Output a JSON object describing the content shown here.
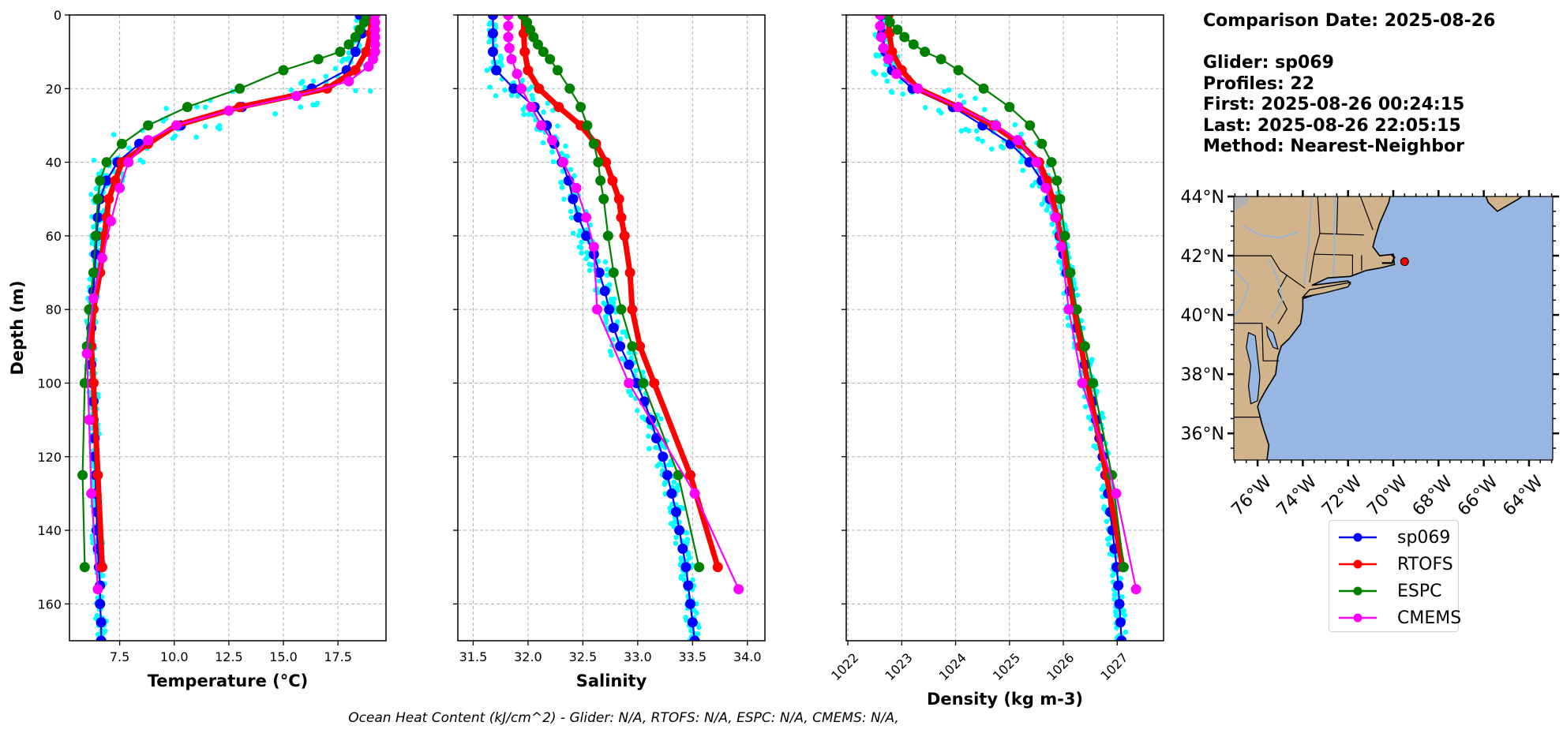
{
  "info": {
    "comparison_date": "Comparison Date: 2025-08-26",
    "glider": "Glider: sp069",
    "profiles": "Profiles: 22",
    "first": "First: 2025-08-26 00:24:15",
    "last": "Last: 2025-08-26 22:05:15",
    "method": "Method: Nearest-Neighbor"
  },
  "footer": "Ocean Heat Content (kJ/cm^2) - Glider: N/A,  RTOFS: N/A,  ESPC: N/A,  CMEMS: N/A,",
  "colors": {
    "glider": "#0000ff",
    "glider_scatter": "#00ffff",
    "rtofs": "#ff0000",
    "espc": "#008000",
    "cmems": "#ff00ff",
    "land": "#d2b48c",
    "ocean": "#97b6e1",
    "grid": "#b0b0b0"
  },
  "legend": [
    {
      "label": "sp069",
      "color": "#0000ff"
    },
    {
      "label": "RTOFS",
      "color": "#ff0000"
    },
    {
      "label": "ESPC",
      "color": "#008000"
    },
    {
      "label": "CMEMS",
      "color": "#ff00ff"
    }
  ],
  "chart_data": [
    {
      "type": "line",
      "title": "",
      "xlabel": "Temperature (°C)",
      "ylabel": "Depth (m)",
      "xlim": [
        5.2,
        19.7
      ],
      "ylim": [
        170,
        0
      ],
      "xticks": [
        7.5,
        10.0,
        12.5,
        15.0,
        17.5
      ],
      "xtick_labels": [
        "7.5",
        "10.0",
        "12.5",
        "15.0",
        "17.5"
      ],
      "yticks": [
        0,
        20,
        40,
        60,
        80,
        100,
        120,
        140,
        160
      ],
      "ytick_labels": [
        "0",
        "20",
        "40",
        "60",
        "80",
        "100",
        "120",
        "140",
        "160"
      ],
      "grid": true,
      "series": [
        {
          "name": "sp069",
          "depth": [
            0,
            5,
            10,
            15,
            20,
            25,
            30,
            35,
            40,
            45,
            50,
            55,
            60,
            65,
            70,
            75,
            80,
            85,
            90,
            95,
            100,
            105,
            110,
            115,
            120,
            125,
            130,
            135,
            140,
            145,
            150,
            155,
            160,
            165,
            170
          ],
          "values": [
            18.5,
            18.6,
            18.3,
            17.9,
            16.3,
            13.1,
            10.3,
            8.4,
            7.4,
            6.9,
            6.6,
            6.5,
            6.45,
            6.4,
            6.35,
            6.3,
            6.25,
            6.2,
            6.2,
            6.2,
            6.25,
            6.3,
            6.3,
            6.35,
            6.35,
            6.4,
            6.4,
            6.45,
            6.45,
            6.5,
            6.55,
            6.6,
            6.6,
            6.65,
            6.65
          ]
        },
        {
          "name": "RTOFS",
          "depth": [
            0,
            5,
            10,
            15,
            20,
            25,
            30,
            35,
            40,
            45,
            50,
            55,
            60,
            70,
            80,
            90,
            100,
            125,
            150
          ],
          "values": [
            19.0,
            19.0,
            18.8,
            18.3,
            17.0,
            13.0,
            10.1,
            8.8,
            7.6,
            7.3,
            7.0,
            6.9,
            6.8,
            6.6,
            6.3,
            6.2,
            6.3,
            6.5,
            6.7
          ]
        },
        {
          "name": "ESPC",
          "depth": [
            0,
            2,
            4,
            6,
            8,
            10,
            12,
            15,
            20,
            25,
            30,
            35,
            40,
            45,
            50,
            60,
            70,
            80,
            90,
            100,
            125,
            150
          ],
          "values": [
            18.8,
            18.7,
            18.5,
            18.3,
            18.0,
            17.6,
            16.6,
            15.0,
            13.0,
            10.6,
            8.8,
            7.6,
            6.9,
            6.6,
            6.5,
            6.4,
            6.3,
            6.1,
            6.0,
            5.9,
            5.8,
            5.9
          ]
        },
        {
          "name": "CMEMS",
          "depth": [
            0,
            2,
            4,
            6,
            8,
            10,
            12,
            14,
            18,
            22,
            26,
            30,
            34,
            40,
            47,
            56,
            66,
            77,
            92,
            110,
            130,
            156
          ],
          "values": [
            19.2,
            19.2,
            19.2,
            19.2,
            19.2,
            19.2,
            19.1,
            18.9,
            18.0,
            15.6,
            12.5,
            10.1,
            8.8,
            7.9,
            7.5,
            7.1,
            6.7,
            6.3,
            6.0,
            6.1,
            6.2,
            6.5
          ]
        }
      ]
    },
    {
      "type": "line",
      "title": "",
      "xlabel": "Salinity",
      "ylabel": "",
      "xlim": [
        31.36,
        34.16
      ],
      "ylim": [
        170,
        0
      ],
      "xticks": [
        31.5,
        32.0,
        32.5,
        33.0,
        33.5,
        34.0
      ],
      "xtick_labels": [
        "31.5",
        "32.0",
        "32.5",
        "33.0",
        "33.5",
        "34.0"
      ],
      "grid": true,
      "series": [
        {
          "name": "sp069",
          "depth": [
            0,
            5,
            10,
            15,
            20,
            25,
            30,
            35,
            40,
            45,
            50,
            55,
            60,
            65,
            70,
            75,
            80,
            85,
            90,
            95,
            100,
            105,
            110,
            115,
            120,
            125,
            130,
            135,
            140,
            145,
            150,
            155,
            160,
            165,
            170
          ],
          "values": [
            31.68,
            31.68,
            31.68,
            31.71,
            31.87,
            32.06,
            32.17,
            32.24,
            32.31,
            32.37,
            32.41,
            32.46,
            32.53,
            32.6,
            32.65,
            32.7,
            32.74,
            32.78,
            32.84,
            32.92,
            32.99,
            33.06,
            33.12,
            33.17,
            33.23,
            33.27,
            33.31,
            33.35,
            33.38,
            33.41,
            33.44,
            33.46,
            33.48,
            33.5,
            33.52
          ]
        },
        {
          "name": "RTOFS",
          "depth": [
            0,
            5,
            10,
            15,
            20,
            25,
            30,
            35,
            40,
            45,
            50,
            55,
            60,
            70,
            80,
            90,
            100,
            125,
            150
          ],
          "values": [
            31.96,
            31.96,
            31.97,
            32.0,
            32.1,
            32.28,
            32.48,
            32.62,
            32.71,
            32.77,
            32.83,
            32.85,
            32.88,
            32.93,
            32.95,
            33.02,
            33.15,
            33.48,
            33.73
          ]
        },
        {
          "name": "ESPC",
          "depth": [
            0,
            2,
            4,
            6,
            8,
            10,
            12,
            15,
            20,
            25,
            30,
            35,
            40,
            45,
            50,
            60,
            70,
            80,
            90,
            100,
            125,
            150
          ],
          "values": [
            31.95,
            31.99,
            32.02,
            32.05,
            32.09,
            32.14,
            32.2,
            32.27,
            32.38,
            32.48,
            32.54,
            32.6,
            32.64,
            32.66,
            32.69,
            32.73,
            32.78,
            32.85,
            32.95,
            33.05,
            33.37,
            33.56
          ]
        },
        {
          "name": "CMEMS",
          "depth": [
            0,
            3,
            6,
            9,
            12,
            16,
            20,
            25,
            30,
            34,
            40,
            47,
            55,
            63,
            80,
            100,
            130,
            156
          ],
          "values": [
            31.82,
            31.82,
            31.82,
            31.83,
            31.85,
            31.9,
            31.94,
            32.03,
            32.12,
            32.22,
            32.32,
            32.44,
            32.53,
            32.6,
            32.63,
            32.92,
            33.52,
            33.92
          ]
        }
      ]
    },
    {
      "type": "line",
      "title": "",
      "xlabel": "Density (kg m-3)",
      "ylabel": "",
      "xlim": [
        1021.97,
        1027.86
      ],
      "ylim": [
        170,
        0
      ],
      "xticks": [
        1022,
        1023,
        1024,
        1025,
        1026,
        1027
      ],
      "xtick_labels": [
        "1022",
        "1023",
        "1024",
        "1025",
        "1026",
        "1027"
      ],
      "grid": true,
      "series": [
        {
          "name": "sp069",
          "depth": [
            0,
            5,
            10,
            15,
            20,
            25,
            30,
            35,
            40,
            45,
            50,
            55,
            60,
            65,
            70,
            75,
            80,
            85,
            90,
            95,
            100,
            105,
            110,
            115,
            120,
            125,
            130,
            135,
            140,
            145,
            150,
            155,
            160,
            165,
            170
          ],
          "values": [
            1022.62,
            1022.64,
            1022.7,
            1022.82,
            1023.2,
            1023.95,
            1024.5,
            1025.02,
            1025.37,
            1025.6,
            1025.75,
            1025.86,
            1025.93,
            1026.0,
            1026.06,
            1026.12,
            1026.18,
            1026.25,
            1026.32,
            1026.4,
            1026.47,
            1026.54,
            1026.61,
            1026.67,
            1026.73,
            1026.78,
            1026.83,
            1026.87,
            1026.91,
            1026.95,
            1026.99,
            1027.02,
            1027.04,
            1027.06,
            1027.08
          ]
        },
        {
          "name": "RTOFS",
          "depth": [
            0,
            5,
            10,
            15,
            20,
            25,
            30,
            35,
            40,
            45,
            50,
            55,
            60,
            70,
            80,
            90,
            100,
            125,
            150
          ],
          "values": [
            1022.75,
            1022.77,
            1022.82,
            1023.0,
            1023.3,
            1024.05,
            1024.7,
            1025.2,
            1025.55,
            1025.7,
            1025.8,
            1025.88,
            1025.95,
            1026.1,
            1026.2,
            1026.33,
            1026.45,
            1026.8,
            1027.1
          ]
        },
        {
          "name": "ESPC",
          "depth": [
            0,
            2,
            4,
            6,
            8,
            10,
            12,
            15,
            20,
            25,
            30,
            35,
            40,
            45,
            50,
            60,
            70,
            80,
            90,
            100,
            125,
            150
          ],
          "values": [
            1022.72,
            1022.78,
            1022.92,
            1023.05,
            1023.22,
            1023.43,
            1023.73,
            1024.05,
            1024.52,
            1025.0,
            1025.38,
            1025.6,
            1025.78,
            1025.88,
            1025.94,
            1026.03,
            1026.13,
            1026.25,
            1026.4,
            1026.55,
            1026.9,
            1027.12
          ]
        },
        {
          "name": "CMEMS",
          "depth": [
            0,
            3,
            6,
            9,
            12,
            16,
            20,
            25,
            30,
            34,
            40,
            47,
            55,
            63,
            80,
            100,
            130,
            156
          ],
          "values": [
            1022.6,
            1022.6,
            1022.62,
            1022.66,
            1022.75,
            1022.9,
            1023.3,
            1024.05,
            1024.75,
            1025.15,
            1025.5,
            1025.67,
            1025.85,
            1025.96,
            1026.1,
            1026.35,
            1026.98,
            1027.35
          ]
        }
      ]
    }
  ],
  "map": {
    "lat_ticks": [
      "44°N",
      "42°N",
      "40°N",
      "38°N",
      "36°N"
    ],
    "lat_values": [
      44,
      42,
      40,
      38,
      36
    ],
    "lon_ticks": [
      "76°W",
      "74°W",
      "72°W",
      "70°W",
      "68°W",
      "66°W",
      "64°W"
    ],
    "lon_values": [
      -76,
      -74,
      -72,
      -70,
      -68,
      -66,
      -64
    ],
    "extent": {
      "lon": [
        -77.05,
        -62.95
      ],
      "lat": [
        35.1,
        44.0
      ]
    },
    "glider_position": {
      "lon": -69.5,
      "lat": 41.8
    }
  }
}
